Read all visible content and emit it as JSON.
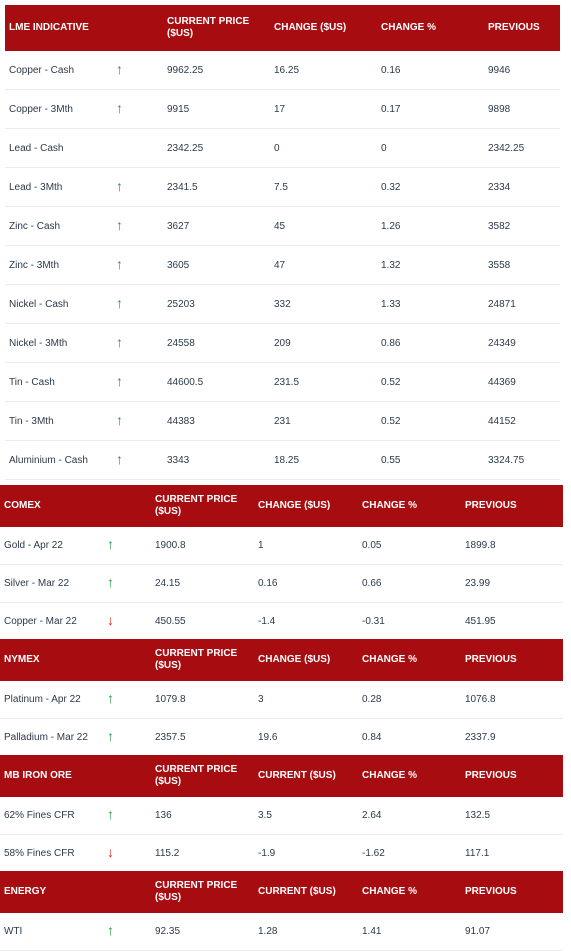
{
  "lme": {
    "headers": [
      "LME INDICATIVE",
      "CURRENT PRICE ($US)",
      "CHANGE ($US)",
      "CHANGE %",
      "PREVIOUS"
    ],
    "rows": [
      {
        "name": "Copper - Cash",
        "arrow": "up",
        "price": "9962.25",
        "change": "16.25",
        "pct": "0.16",
        "prev": "9946"
      },
      {
        "name": "Copper - 3Mth",
        "arrow": "up",
        "price": "9915",
        "change": "17",
        "pct": "0.17",
        "prev": "9898"
      },
      {
        "name": "Lead - Cash",
        "arrow": "flat",
        "price": "2342.25",
        "change": "0",
        "pct": "0",
        "prev": "2342.25"
      },
      {
        "name": "Lead - 3Mth",
        "arrow": "up",
        "price": "2341.5",
        "change": "7.5",
        "pct": "0.32",
        "prev": "2334"
      },
      {
        "name": "Zinc - Cash",
        "arrow": "up",
        "price": "3627",
        "change": "45",
        "pct": "1.26",
        "prev": "3582"
      },
      {
        "name": "Zinc - 3Mth",
        "arrow": "up",
        "price": "3605",
        "change": "47",
        "pct": "1.32",
        "prev": "3558"
      },
      {
        "name": "Nickel - Cash",
        "arrow": "up",
        "price": "25203",
        "change": "332",
        "pct": "1.33",
        "prev": "24871"
      },
      {
        "name": "Nickel - 3Mth",
        "arrow": "up",
        "price": "24558",
        "change": "209",
        "pct": "0.86",
        "prev": "24349"
      },
      {
        "name": "Tin - Cash",
        "arrow": "up",
        "price": "44600.5",
        "change": "231.5",
        "pct": "0.52",
        "prev": "44369"
      },
      {
        "name": "Tin - 3Mth",
        "arrow": "up",
        "price": "44383",
        "change": "231",
        "pct": "0.52",
        "prev": "44152"
      },
      {
        "name": "Aluminium - Cash",
        "arrow": "up",
        "price": "3343",
        "change": "18.25",
        "pct": "0.55",
        "prev": "3324.75"
      }
    ]
  },
  "comex": {
    "headers": [
      "COMEX",
      "CURRENT PRICE ($US)",
      "CHANGE ($US)",
      "CHANGE %",
      "PREVIOUS"
    ],
    "rows": [
      {
        "name": "Gold - Apr 22",
        "arrow": "up",
        "price": "1900.8",
        "change": "1",
        "pct": "0.05",
        "prev": "1899.8"
      },
      {
        "name": "Silver - Mar 22",
        "arrow": "up",
        "price": "24.15",
        "change": "0.16",
        "pct": "0.66",
        "prev": "23.99"
      },
      {
        "name": "Copper - Mar 22",
        "arrow": "down",
        "price": "450.55",
        "change": "-1.4",
        "pct": "-0.31",
        "prev": "451.95"
      }
    ]
  },
  "nymex": {
    "headers": [
      "NYMEX",
      "CURRENT PRICE ($US)",
      "CHANGE ($US)",
      "CHANGE %",
      "PREVIOUS"
    ],
    "rows": [
      {
        "name": "Platinum - Apr 22",
        "arrow": "up",
        "price": "1079.8",
        "change": "3",
        "pct": "0.28",
        "prev": "1076.8"
      },
      {
        "name": "Palladium - Mar 22",
        "arrow": "up",
        "price": "2357.5",
        "change": "19.6",
        "pct": "0.84",
        "prev": "2337.9"
      }
    ]
  },
  "ironore": {
    "headers": [
      "MB IRON ORE",
      "CURRENT PRICE ($US)",
      "CURRENT ($US)",
      "CHANGE %",
      "PREVIOUS"
    ],
    "rows": [
      {
        "name": "62% Fines CFR",
        "arrow": "up",
        "price": "136",
        "change": "3.5",
        "pct": "2.64",
        "prev": "132.5"
      },
      {
        "name": "58% Fines CFR",
        "arrow": "down",
        "price": "115.2",
        "change": "-1.9",
        "pct": "-1.62",
        "prev": "117.1"
      }
    ]
  },
  "energy": {
    "headers": [
      "ENERGY",
      "CURRENT PRICE ($US)",
      "CURRENT ($US)",
      "CHANGE %",
      "PREVIOUS"
    ],
    "rows": [
      {
        "name": "WTI",
        "arrow": "up",
        "price": "92.35",
        "change": "1.28",
        "pct": "1.41",
        "prev": "91.07"
      }
    ]
  },
  "icons": {
    "up": "arrow-up-icon",
    "down": "arrow-down-icon",
    "flat": "arrow-up-icon"
  },
  "colors": {
    "header_bg": "#a70d10",
    "header_text": "#ffffff",
    "up": "#1f9a3b",
    "down": "#e0241d"
  }
}
